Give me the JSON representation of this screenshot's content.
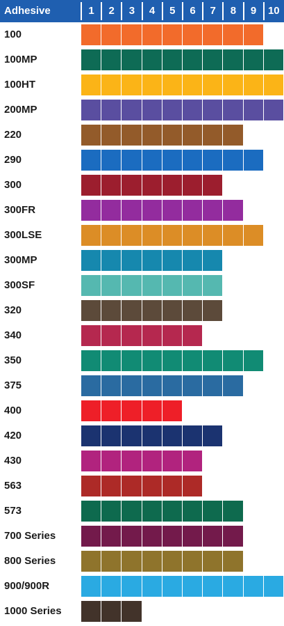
{
  "chart_data": {
    "type": "table",
    "header": "Adhesive",
    "columns": [
      "1",
      "2",
      "3",
      "4",
      "5",
      "6",
      "7",
      "8",
      "9",
      "10"
    ],
    "rows": [
      {
        "label": "100",
        "value": 9,
        "color": "#f26b2b"
      },
      {
        "label": "100MP",
        "value": 10,
        "color": "#0e6b55"
      },
      {
        "label": "100HT",
        "value": 10,
        "color": "#fbb417"
      },
      {
        "label": "200MP",
        "value": 10,
        "color": "#5a4ea0"
      },
      {
        "label": "220",
        "value": 8,
        "color": "#935b2a"
      },
      {
        "label": "290",
        "value": 9,
        "color": "#1b6cc0"
      },
      {
        "label": "300",
        "value": 7,
        "color": "#9c1e2e"
      },
      {
        "label": "300FR",
        "value": 8,
        "color": "#932c9e"
      },
      {
        "label": "300LSE",
        "value": 9,
        "color": "#dc8d26"
      },
      {
        "label": "300MP",
        "value": 7,
        "color": "#1688ae"
      },
      {
        "label": "300SF",
        "value": 7,
        "color": "#55b8b0"
      },
      {
        "label": "320",
        "value": 7,
        "color": "#5c4a3a"
      },
      {
        "label": "340",
        "value": 6,
        "color": "#b5284f"
      },
      {
        "label": "350",
        "value": 9,
        "color": "#118b74"
      },
      {
        "label": "375",
        "value": 8,
        "color": "#2a6ba1"
      },
      {
        "label": "400",
        "value": 5,
        "color": "#ee1f28"
      },
      {
        "label": "420",
        "value": 7,
        "color": "#1b3370"
      },
      {
        "label": "430",
        "value": 6,
        "color": "#b1237e"
      },
      {
        "label": "563",
        "value": 6,
        "color": "#ad2a27"
      },
      {
        "label": "573",
        "value": 8,
        "color": "#0e6a4e"
      },
      {
        "label": "700 Series",
        "value": 8,
        "color": "#731a4b"
      },
      {
        "label": "800 Series",
        "value": 8,
        "color": "#8f742c"
      },
      {
        "label": "900/900R",
        "value": 10,
        "color": "#2aaae2"
      },
      {
        "label": "1000 Series",
        "value": 3,
        "color": "#42332a"
      }
    ]
  }
}
